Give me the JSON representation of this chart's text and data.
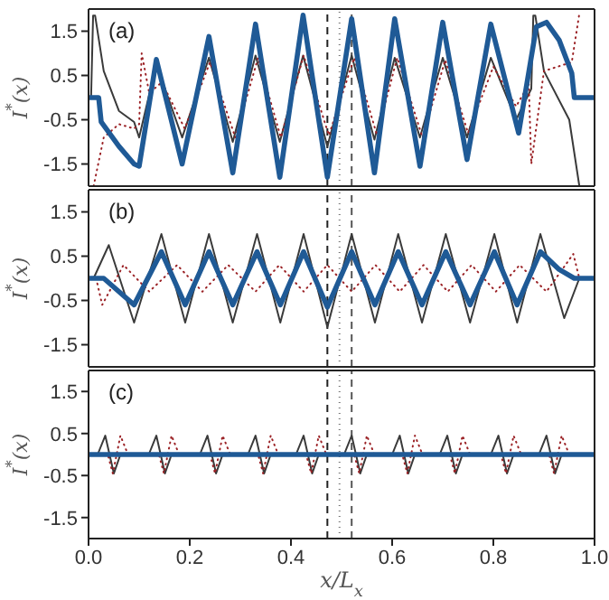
{
  "chart_data": [
    {
      "type": "line",
      "annotations": [
        "(a)"
      ],
      "ylabel": "I$^{*}$(x)",
      "xlim": [
        0,
        1
      ],
      "ylim": [
        -2,
        2
      ],
      "yticks": [
        -1.5,
        -0.5,
        0.5,
        1.5
      ],
      "tick_labels": "y",
      "marker": "none",
      "series": [
        {
          "color": "#3a3a3a",
          "line_style": "solid",
          "x": [
            0,
            0.005,
            0.009,
            0.013,
            0.03,
            0.06,
            0.09,
            0.1,
            0.134,
            0.185,
            0.238,
            0.285,
            0.33,
            0.378,
            0.424,
            0.472,
            0.52,
            0.565,
            0.605,
            0.655,
            0.7,
            0.748,
            0.795,
            0.845,
            0.875,
            0.879,
            0.883,
            0.9,
            0.95,
            0.97
          ],
          "values": [
            0,
            0,
            1.85,
            1.85,
            0.6,
            -0.3,
            -0.55,
            -0.9,
            0.75,
            -0.9,
            0.9,
            -1.0,
            0.95,
            -1.0,
            0.95,
            -1.1,
            0.95,
            -0.95,
            0.9,
            -0.9,
            0.9,
            -0.9,
            0.9,
            -0.5,
            0.2,
            1.85,
            1.85,
            0.6,
            -0.5,
            -2.0
          ]
        },
        {
          "color": "#9b2226",
          "line_style": "dotted",
          "x": [
            0.01,
            0.03,
            0.06,
            0.09,
            0.1,
            0.105,
            0.12,
            0.145,
            0.19,
            0.24,
            0.29,
            0.335,
            0.38,
            0.425,
            0.475,
            0.525,
            0.57,
            0.61,
            0.66,
            0.705,
            0.75,
            0.8,
            0.845,
            0.87,
            0.875,
            0.9,
            0.955,
            0.97
          ],
          "values": [
            -2.0,
            -0.9,
            -0.6,
            -0.7,
            -0.6,
            1.0,
            0.1,
            0.35,
            -0.7,
            0.8,
            -0.9,
            0.9,
            -0.9,
            0.95,
            -0.85,
            0.9,
            -0.85,
            0.9,
            -0.9,
            0.85,
            -0.8,
            0.7,
            -0.2,
            0.3,
            -1.5,
            0.6,
            0.8,
            1.9
          ]
        },
        {
          "color": "#1f5a96",
          "line_style": "solid",
          "x": [
            0,
            0.02,
            0.025,
            0.06,
            0.09,
            0.1,
            0.134,
            0.185,
            0.238,
            0.285,
            0.33,
            0.378,
            0.424,
            0.472,
            0.52,
            0.565,
            0.605,
            0.655,
            0.7,
            0.748,
            0.795,
            0.85,
            0.885,
            0.905,
            0.93,
            0.955,
            0.96,
            1.0
          ],
          "values": [
            0,
            0,
            -0.55,
            -1.1,
            -1.5,
            -1.55,
            0.86,
            -1.5,
            1.38,
            -1.7,
            1.66,
            -1.8,
            1.86,
            -1.8,
            1.78,
            -1.7,
            1.78,
            -1.55,
            1.7,
            -1.4,
            1.66,
            -0.8,
            1.6,
            1.7,
            1.3,
            0.55,
            0,
            0
          ]
        }
      ],
      "ref_lines": [
        {
          "axis": "x",
          "value": 0.472,
          "color": "#222222",
          "line_style": "dashed"
        },
        {
          "axis": "x",
          "value": 0.496,
          "color": "#777777",
          "line_style": "dotted"
        },
        {
          "axis": "x",
          "value": 0.52,
          "color": "#555555",
          "line_style": "dashed"
        }
      ]
    },
    {
      "type": "line",
      "annotations": [
        "(b)"
      ],
      "ylabel": "I$^{*}$(x)",
      "xlim": [
        0,
        1
      ],
      "ylim": [
        -2,
        2
      ],
      "yticks": [
        -1.5,
        -0.5,
        0.5,
        1.5
      ],
      "tick_labels": "y",
      "marker": "none",
      "series": [
        {
          "color": "#3a3a3a",
          "line_style": "solid",
          "x": [
            0,
            0.01,
            0.04,
            0.09,
            0.144,
            0.191,
            0.238,
            0.285,
            0.333,
            0.379,
            0.425,
            0.472,
            0.52,
            0.566,
            0.612,
            0.659,
            0.706,
            0.754,
            0.802,
            0.847,
            0.893,
            0.94,
            0.97,
            1.0
          ],
          "values": [
            0,
            0,
            0.75,
            -1.0,
            1.0,
            -1.0,
            1.0,
            -1.0,
            1.0,
            -1.0,
            1.0,
            -1.1,
            1.0,
            -1.0,
            1.0,
            -1.0,
            1.0,
            -1.0,
            1.0,
            -1.0,
            1.0,
            -0.9,
            0,
            0
          ]
        },
        {
          "color": "#9b2226",
          "line_style": "dotted",
          "x": [
            0.015,
            0.027,
            0.069,
            0.12,
            0.175,
            0.225,
            0.276,
            0.33,
            0.377,
            0.425,
            0.472,
            0.52,
            0.567,
            0.615,
            0.662,
            0.71,
            0.757,
            0.805,
            0.852,
            0.905,
            0.958,
            0.97
          ],
          "values": [
            0,
            -0.6,
            0.3,
            -0.3,
            0.3,
            -0.3,
            0.3,
            -0.3,
            0.3,
            -0.3,
            0.3,
            -0.3,
            0.3,
            -0.3,
            0.3,
            -0.3,
            0.3,
            -0.3,
            0.3,
            -0.3,
            0.55,
            0
          ]
        },
        {
          "color": "#1f5a96",
          "line_style": "solid",
          "x": [
            0,
            0.03,
            0.09,
            0.144,
            0.191,
            0.238,
            0.285,
            0.333,
            0.379,
            0.425,
            0.472,
            0.52,
            0.566,
            0.612,
            0.659,
            0.706,
            0.754,
            0.802,
            0.847,
            0.893,
            0.93,
            0.96,
            1.0
          ],
          "values": [
            0,
            0,
            -0.6,
            0.6,
            -0.6,
            0.6,
            -0.6,
            0.6,
            -0.6,
            0.6,
            -0.65,
            0.6,
            -0.6,
            0.6,
            -0.6,
            0.6,
            -0.6,
            0.6,
            -0.6,
            0.6,
            0.2,
            0,
            0
          ]
        }
      ],
      "ref_lines": [
        {
          "axis": "x",
          "value": 0.472,
          "color": "#222222",
          "line_style": "dashed"
        },
        {
          "axis": "x",
          "value": 0.496,
          "color": "#777777",
          "line_style": "dotted"
        },
        {
          "axis": "x",
          "value": 0.52,
          "color": "#555555",
          "line_style": "dashed"
        }
      ]
    },
    {
      "type": "line",
      "annotations": [
        "(c)"
      ],
      "xlabel": "x/L$_{x}$",
      "ylabel": "I$^{*}$(x)",
      "xlim": [
        0,
        1
      ],
      "ylim": [
        -2,
        2
      ],
      "xticks": [
        {
          "value": 0,
          "label": "0.0"
        },
        {
          "value": 0.2,
          "label": "0.2"
        },
        {
          "value": 0.4,
          "label": "0.4"
        },
        {
          "value": 0.6,
          "label": "0.6"
        },
        {
          "value": 0.8,
          "label": "0.8"
        },
        {
          "value": 1,
          "label": "1.0"
        }
      ],
      "yticks": [
        -1.5,
        -0.5,
        0.5,
        1.5
      ],
      "marker": "none",
      "series": [
        {
          "color": "#3a3a3a",
          "line_style": "solid",
          "x": [
            0,
            0.018,
            0.033,
            0.05,
            0.063,
            0.119,
            0.134,
            0.151,
            0.164,
            0.22,
            0.235,
            0.252,
            0.265,
            0.315,
            0.33,
            0.347,
            0.36,
            0.41,
            0.425,
            0.442,
            0.455,
            0.505,
            0.52,
            0.537,
            0.55,
            0.6,
            0.615,
            0.632,
            0.645,
            0.694,
            0.709,
            0.726,
            0.739,
            0.795,
            0.81,
            0.827,
            0.84,
            0.89,
            0.905,
            0.922,
            0.935,
            1.0
          ],
          "values": [
            0,
            0,
            0.45,
            -0.45,
            0,
            0,
            0.45,
            -0.45,
            0,
            0,
            0.45,
            -0.45,
            0,
            0,
            0.45,
            -0.45,
            0,
            0,
            0.45,
            -0.45,
            0,
            0,
            0.45,
            -0.45,
            0,
            0,
            0.45,
            -0.45,
            0,
            0,
            0.45,
            -0.45,
            0,
            0,
            0.45,
            -0.45,
            0,
            0,
            0.45,
            -0.45,
            0,
            0
          ]
        },
        {
          "color": "#9b2226",
          "line_style": "dotted",
          "x": [
            0,
            0.038,
            0.048,
            0.063,
            0.078,
            0.139,
            0.149,
            0.164,
            0.179,
            0.24,
            0.25,
            0.265,
            0.28,
            0.335,
            0.345,
            0.36,
            0.375,
            0.43,
            0.44,
            0.455,
            0.47,
            0.525,
            0.535,
            0.55,
            0.565,
            0.62,
            0.63,
            0.645,
            0.66,
            0.714,
            0.724,
            0.739,
            0.754,
            0.815,
            0.825,
            0.84,
            0.855,
            0.91,
            0.92,
            0.935,
            0.95,
            1.0
          ],
          "values": [
            0,
            0,
            -0.45,
            0.45,
            0,
            0,
            -0.45,
            0.45,
            0,
            0,
            -0.45,
            0.45,
            0,
            0,
            -0.45,
            0.45,
            0,
            0,
            -0.45,
            0.45,
            0,
            0,
            -0.45,
            0.45,
            0,
            0,
            -0.45,
            0.45,
            0,
            0,
            -0.45,
            0.45,
            0,
            0,
            -0.45,
            0.45,
            0,
            0,
            -0.45,
            0.45,
            0,
            0
          ]
        },
        {
          "color": "#1f5a96",
          "line_style": "solid",
          "x": [
            0,
            1
          ],
          "values": [
            0,
            0
          ]
        }
      ],
      "ref_lines": [
        {
          "axis": "x",
          "value": 0.472,
          "color": "#222222",
          "line_style": "dashed"
        },
        {
          "axis": "x",
          "value": 0.496,
          "color": "#777777",
          "line_style": "dotted"
        },
        {
          "axis": "x",
          "value": 0.52,
          "color": "#555555",
          "line_style": "dashed"
        }
      ]
    }
  ]
}
